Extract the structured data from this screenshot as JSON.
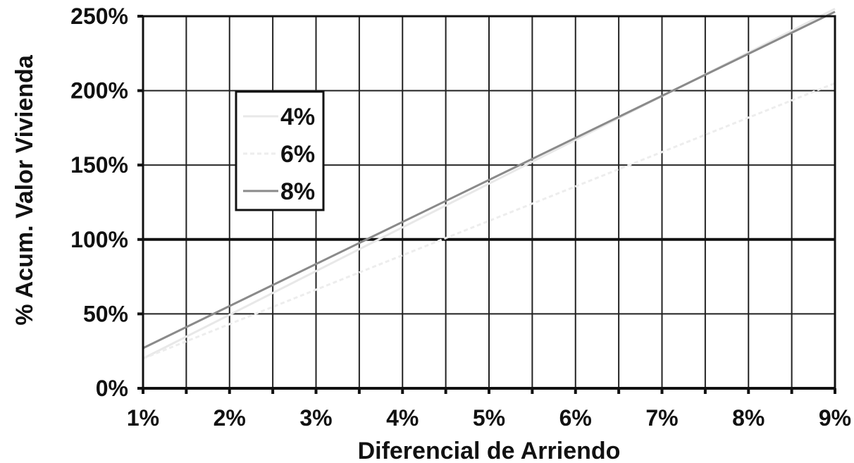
{
  "chart_data": {
    "type": "line",
    "title": "",
    "xlabel": "Diferencial de Arriendo",
    "ylabel": "% Acum. Valor Vivienda",
    "x_tick_labels": [
      "1%",
      "2%",
      "3%",
      "4%",
      "5%",
      "6%",
      "7%",
      "8%",
      "9%"
    ],
    "y_tick_labels": [
      "0%",
      "50%",
      "100%",
      "150%",
      "200%",
      "250%"
    ],
    "xlim": [
      1,
      9
    ],
    "ylim": [
      0,
      250
    ],
    "grid": true,
    "legend_position": "upper-left inside plot",
    "series": [
      {
        "name": "4%",
        "x": [
          1,
          9
        ],
        "y": [
          20,
          255
        ],
        "color": "#e8e8e8",
        "dash": "none"
      },
      {
        "name": "6%",
        "x": [
          1,
          9
        ],
        "y": [
          20,
          205
        ],
        "color": "#ededed",
        "dash": "6,4"
      },
      {
        "name": "8%",
        "x": [
          1,
          9
        ],
        "y": [
          27,
          253
        ],
        "color": "#8a8a8a",
        "dash": "none"
      }
    ],
    "reference_line": {
      "y": 100,
      "color": "#111111"
    }
  }
}
